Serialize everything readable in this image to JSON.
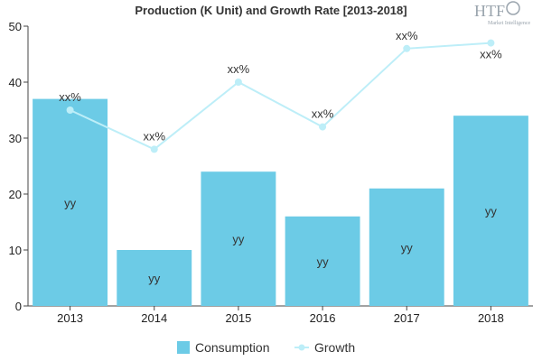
{
  "chart_data": {
    "type": "bar",
    "title": "Production (K Unit) and Growth Rate [2013-2018]",
    "categories": [
      "2013",
      "2014",
      "2015",
      "2016",
      "2017",
      "2018"
    ],
    "ylim": [
      0,
      50
    ],
    "yticks": [
      0,
      10,
      20,
      30,
      40,
      50
    ],
    "xlabel": "",
    "ylabel": "",
    "grid": false,
    "legend_position": "bottom",
    "series": [
      {
        "name": "Consumption",
        "type": "bar",
        "color": "#6ccbe6",
        "values": [
          37,
          10,
          24,
          16,
          21,
          34
        ],
        "labels": [
          "yy",
          "yy",
          "yy",
          "yy",
          "yy",
          "yy"
        ]
      },
      {
        "name": "Growth",
        "type": "line",
        "color": "#bdeef8",
        "values": [
          35,
          28,
          40,
          32,
          46,
          47
        ],
        "labels": [
          "xx%",
          "xx%",
          "xx%",
          "xx%",
          "xx%",
          "xx%"
        ]
      }
    ]
  },
  "logo": {
    "text": "HTF",
    "subtext": "Market Intelligence"
  }
}
